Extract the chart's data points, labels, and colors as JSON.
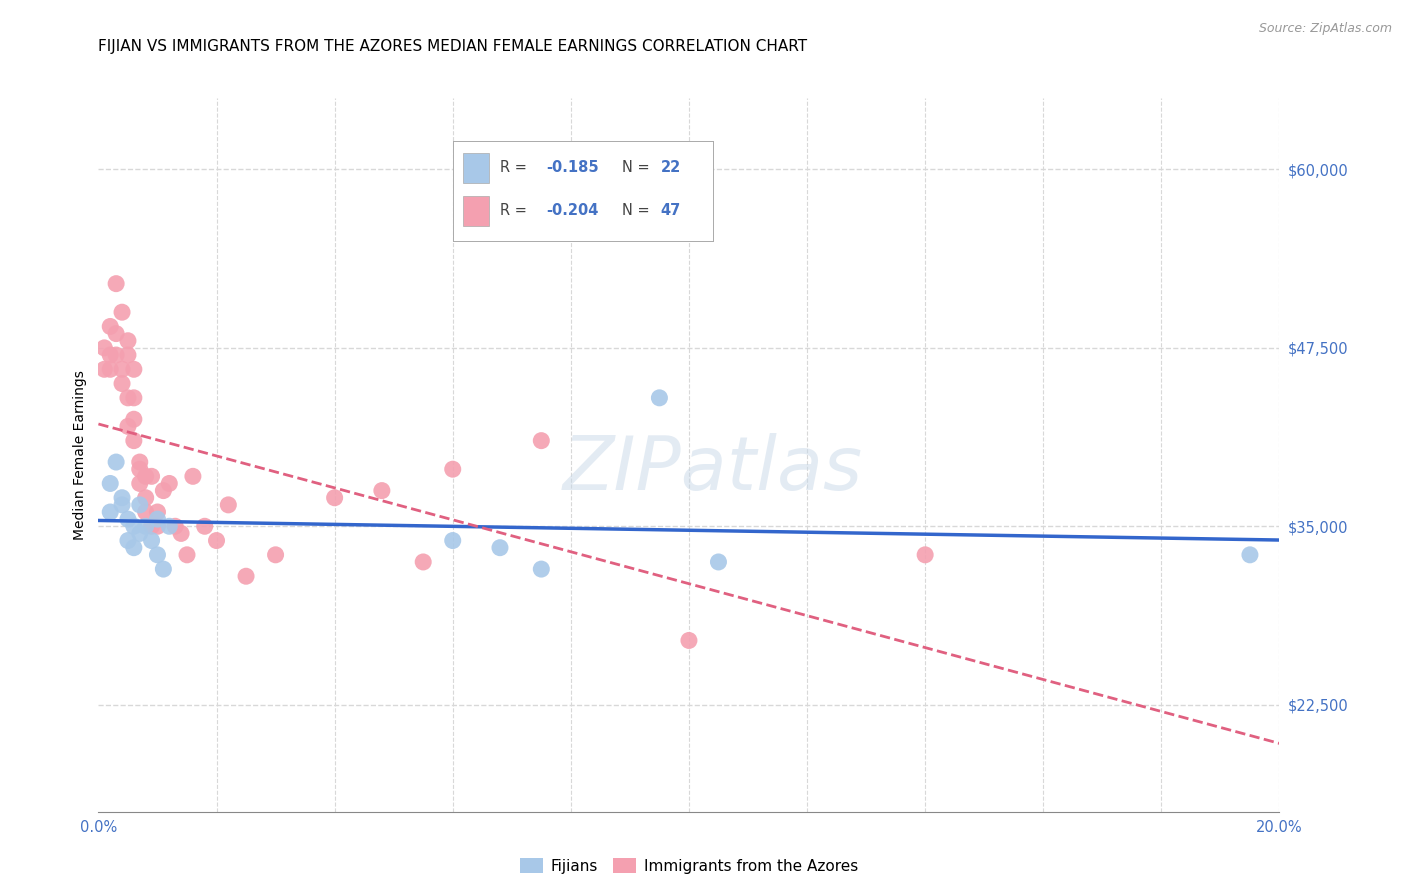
{
  "title": "FIJIAN VS IMMIGRANTS FROM THE AZORES MEDIAN FEMALE EARNINGS CORRELATION CHART",
  "source": "Source: ZipAtlas.com",
  "ylabel": "Median Female Earnings",
  "xlim": [
    0.0,
    0.2
  ],
  "ylim": [
    15000,
    65000
  ],
  "yticks": [
    22500,
    35000,
    47500,
    60000
  ],
  "ytick_labels": [
    "$22,500",
    "$35,000",
    "$47,500",
    "$60,000"
  ],
  "xticks": [
    0.0,
    0.02,
    0.04,
    0.06,
    0.08,
    0.1,
    0.12,
    0.14,
    0.16,
    0.18,
    0.2
  ],
  "xtick_labels": [
    "0.0%",
    "",
    "",
    "",
    "",
    "",
    "",
    "",
    "",
    "",
    "20.0%"
  ],
  "background_color": "#ffffff",
  "grid_color": "#d8d8d8",
  "watermark": "ZIPatlas",
  "fijians_color": "#a8c8e8",
  "azores_color": "#f4a0b0",
  "fijians_line_color": "#3366cc",
  "azores_line_color": "#e06080",
  "title_fontsize": 11,
  "axis_label_fontsize": 10,
  "tick_label_color": "#4472c4",
  "legend_blue_color": "#a8c8e8",
  "legend_pink_color": "#f4a0b0",
  "fijians_x": [
    0.002,
    0.002,
    0.003,
    0.004,
    0.004,
    0.005,
    0.005,
    0.006,
    0.006,
    0.007,
    0.007,
    0.008,
    0.009,
    0.01,
    0.01,
    0.011,
    0.012,
    0.06,
    0.068,
    0.075,
    0.095,
    0.105,
    0.195
  ],
  "fijians_y": [
    38000,
    36000,
    39500,
    37000,
    36500,
    35500,
    34000,
    35000,
    33500,
    36500,
    34500,
    35000,
    34000,
    33000,
    35500,
    32000,
    35000,
    34000,
    33500,
    32000,
    44000,
    32500,
    33000
  ],
  "azores_x": [
    0.001,
    0.001,
    0.002,
    0.002,
    0.002,
    0.003,
    0.003,
    0.003,
    0.004,
    0.004,
    0.004,
    0.005,
    0.005,
    0.005,
    0.005,
    0.006,
    0.006,
    0.006,
    0.006,
    0.007,
    0.007,
    0.007,
    0.008,
    0.008,
    0.008,
    0.009,
    0.009,
    0.01,
    0.01,
    0.011,
    0.012,
    0.013,
    0.014,
    0.015,
    0.016,
    0.018,
    0.02,
    0.022,
    0.025,
    0.03,
    0.04,
    0.048,
    0.055,
    0.06,
    0.075,
    0.1,
    0.14
  ],
  "azores_y": [
    47500,
    46000,
    49000,
    47000,
    46000,
    52000,
    48500,
    47000,
    50000,
    46000,
    45000,
    48000,
    47000,
    44000,
    42000,
    46000,
    44000,
    42500,
    41000,
    39500,
    39000,
    38000,
    38500,
    37000,
    36000,
    38500,
    35000,
    36000,
    35000,
    37500,
    38000,
    35000,
    34500,
    33000,
    38500,
    35000,
    34000,
    36500,
    31500,
    33000,
    37000,
    37500,
    32500,
    39000,
    41000,
    27000,
    33000
  ]
}
